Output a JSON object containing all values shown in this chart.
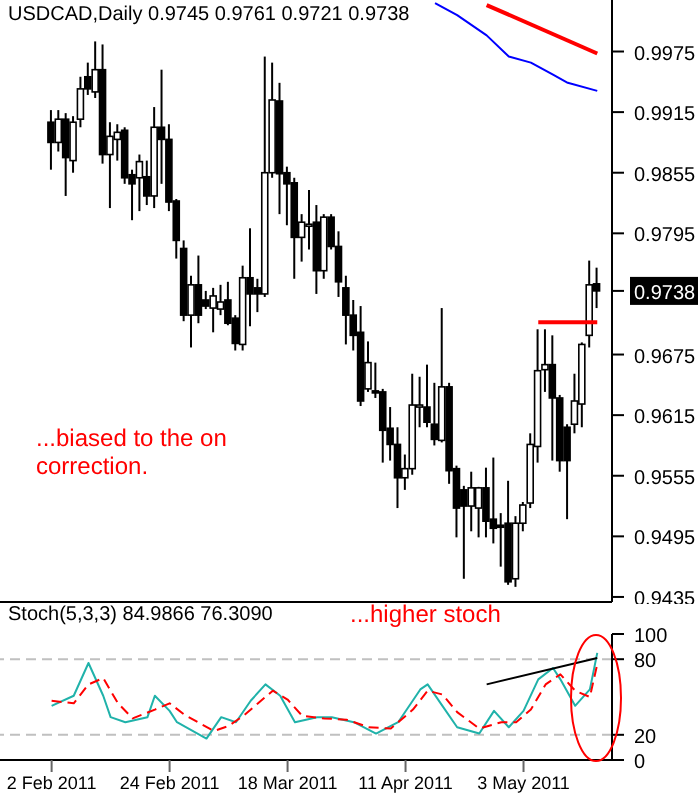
{
  "chart_data": [
    {
      "type": "candlestick",
      "title": "USDCAD,Daily 0.9745 0.9761 0.9721 0.9738",
      "categories": [
        null,
        null,
        null,
        null,
        null,
        null,
        null,
        null,
        null,
        null,
        null,
        null,
        null,
        null,
        null,
        null,
        null,
        null,
        null,
        null,
        null,
        null,
        null,
        null,
        null,
        null,
        null,
        null,
        null,
        null,
        null,
        null,
        null,
        null,
        null,
        null,
        null,
        null,
        null,
        null,
        null,
        null,
        null,
        null,
        null,
        null,
        null,
        null,
        null,
        null,
        null,
        null,
        null,
        null,
        null,
        null,
        null,
        null,
        null,
        null,
        null,
        null,
        null,
        null,
        null,
        null,
        null,
        null,
        null,
        null,
        null,
        null,
        null,
        null,
        null
      ],
      "ohlc": [
        [
          0.9905,
          0.9917,
          0.9858,
          0.9885
        ],
        [
          0.9885,
          0.9917,
          0.9876,
          0.9908
        ],
        [
          0.9908,
          0.9914,
          0.9832,
          0.987
        ],
        [
          0.9867,
          0.9911,
          0.9855,
          0.9905
        ],
        [
          0.9908,
          0.995,
          0.99,
          0.9938
        ],
        [
          0.995,
          0.9964,
          0.9932,
          0.9938
        ],
        [
          0.9935,
          0.9985,
          0.9929,
          0.9957
        ],
        [
          0.9957,
          0.9982,
          0.9864,
          0.9873
        ],
        [
          0.9873,
          0.9905,
          0.982,
          0.9891
        ],
        [
          0.9888,
          0.9903,
          0.9867,
          0.9895
        ],
        [
          0.9897,
          0.99,
          0.9844,
          0.985
        ],
        [
          0.9853,
          0.9858,
          0.9808,
          0.9844
        ],
        [
          0.985,
          0.9873,
          0.9817,
          0.9866
        ],
        [
          0.9851,
          0.9867,
          0.9823,
          0.9832
        ],
        [
          0.9832,
          0.992,
          0.982,
          0.99
        ],
        [
          0.99,
          0.9957,
          0.9844,
          0.9888
        ],
        [
          0.9888,
          0.9903,
          0.9817,
          0.9826
        ],
        [
          0.9827,
          0.9829,
          0.977,
          0.9788
        ],
        [
          0.978,
          0.9788,
          0.9708,
          0.9714
        ],
        [
          0.9714,
          0.9753,
          0.9682,
          0.9744
        ],
        [
          0.9744,
          0.9773,
          0.9706,
          0.9714
        ],
        [
          0.9729,
          0.9738,
          0.972,
          0.9723
        ],
        [
          0.9721,
          0.9741,
          0.9697,
          0.9733
        ],
        [
          0.972,
          0.9744,
          0.9714,
          0.9727
        ],
        [
          0.9729,
          0.9747,
          0.9704,
          0.9706
        ],
        [
          0.9711,
          0.9714,
          0.9679,
          0.9686
        ],
        [
          0.9685,
          0.9763,
          0.9679,
          0.9751
        ],
        [
          0.9751,
          0.98,
          0.9703,
          0.9735
        ],
        [
          0.9741,
          0.975,
          0.9717,
          0.9735
        ],
        [
          0.9735,
          0.997,
          0.9732,
          0.9855
        ],
        [
          0.9855,
          0.9964,
          0.985,
          0.9927
        ],
        [
          0.9926,
          0.9944,
          0.9814,
          0.9854
        ],
        [
          0.9855,
          0.9861,
          0.9803,
          0.9844
        ],
        [
          0.9845,
          0.985,
          0.975,
          0.9791
        ],
        [
          0.9791,
          0.9814,
          0.9767,
          0.9806
        ],
        [
          0.9803,
          0.9838,
          0.9779,
          0.9804
        ],
        [
          0.9806,
          0.9823,
          0.9735,
          0.9758
        ],
        [
          0.9758,
          0.9814,
          0.975,
          0.9811
        ],
        [
          0.9811,
          0.9814,
          0.9779,
          0.9782
        ],
        [
          0.9782,
          0.9797,
          0.9732,
          0.9747
        ],
        [
          0.9741,
          0.9753,
          0.9685,
          0.9714
        ],
        [
          0.9714,
          0.9729,
          0.9679,
          0.9694
        ],
        [
          0.9697,
          0.9723,
          0.9624,
          0.9629
        ],
        [
          0.9641,
          0.9688,
          0.9638,
          0.9667
        ],
        [
          0.9639,
          0.9667,
          0.9632,
          0.9637
        ],
        [
          0.9638,
          0.9641,
          0.9568,
          0.96
        ],
        [
          0.9602,
          0.9623,
          0.957,
          0.9586
        ],
        [
          0.9586,
          0.9603,
          0.9523,
          0.9553
        ],
        [
          0.9553,
          0.9576,
          0.9541,
          0.9562
        ],
        [
          0.9562,
          0.9656,
          0.9556,
          0.9625
        ],
        [
          0.9623,
          0.9653,
          0.9603,
          0.9625
        ],
        [
          0.9623,
          0.9665,
          0.9603,
          0.9608
        ],
        [
          0.9606,
          0.9647,
          0.9585,
          0.9591
        ],
        [
          0.959,
          0.9721,
          0.9588,
          0.9643
        ],
        [
          0.9643,
          0.9647,
          0.9547,
          0.956
        ],
        [
          0.9562,
          0.9565,
          0.9494,
          0.9523
        ],
        [
          0.9541,
          0.9545,
          0.9453,
          0.9525
        ],
        [
          0.9525,
          0.9559,
          0.95,
          0.9543
        ],
        [
          0.9523,
          0.9544,
          0.9494,
          0.9543
        ],
        [
          0.9543,
          0.9563,
          0.9494,
          0.951
        ],
        [
          0.9512,
          0.9573,
          0.9488,
          0.9503
        ],
        [
          0.9506,
          0.9518,
          0.9465,
          0.9504
        ],
        [
          0.9508,
          0.955,
          0.9447,
          0.945
        ],
        [
          0.9453,
          0.9515,
          0.9445,
          0.9508
        ],
        [
          0.9508,
          0.9529,
          0.95,
          0.9526
        ],
        [
          0.9528,
          0.9597,
          0.9523,
          0.9586
        ],
        [
          0.9584,
          0.97,
          0.9568,
          0.9659
        ],
        [
          0.966,
          0.97,
          0.9638,
          0.9665
        ],
        [
          0.9665,
          0.9694,
          0.957,
          0.9632
        ],
        [
          0.9632,
          0.9635,
          0.9559,
          0.957
        ],
        [
          0.9603,
          0.9606,
          0.9512,
          0.957
        ],
        [
          0.9606,
          0.9656,
          0.9597,
          0.9629
        ],
        [
          0.9626,
          0.9687,
          0.9603,
          0.9685
        ],
        [
          0.9694,
          0.9768,
          0.9682,
          0.9744
        ],
        [
          0.9745,
          0.9761,
          0.9721,
          0.9738
        ]
      ],
      "series": [
        {
          "type": "line",
          "color": "#0000ff",
          "values": [
            null,
            null,
            null,
            null,
            null,
            null,
            null,
            null,
            null,
            null,
            null,
            null,
            null,
            null,
            null,
            null,
            null,
            null,
            null,
            null,
            null,
            null,
            null,
            null,
            null,
            null,
            null,
            null,
            null,
            null,
            null,
            null,
            null,
            null,
            null,
            null,
            null,
            null,
            null,
            null,
            null,
            null,
            null,
            null,
            null,
            null,
            null,
            null,
            null,
            null,
            null,
            null,
            1.0023,
            null,
            null,
            1.0011,
            null,
            null,
            null,
            0.9991,
            null,
            null,
            0.997,
            null,
            null,
            0.9964,
            null,
            null,
            0.9952,
            null,
            0.9944,
            null,
            null,
            null,
            0.9936
          ]
        },
        {
          "type": "line",
          "color": "#ff0000",
          "values": [
            null,
            null,
            null,
            null,
            null,
            null,
            null,
            null,
            null,
            null,
            null,
            null,
            null,
            null,
            null,
            null,
            null,
            null,
            null,
            null,
            null,
            null,
            null,
            null,
            null,
            null,
            null,
            null,
            null,
            null,
            null,
            null,
            null,
            null,
            null,
            null,
            null,
            null,
            null,
            null,
            null,
            null,
            null,
            null,
            null,
            null,
            null,
            null,
            null,
            null,
            null,
            null,
            null,
            null,
            null,
            null,
            null,
            null,
            null,
            1.0021,
            null,
            null,
            null,
            null,
            null,
            null,
            null,
            null,
            null,
            null,
            null,
            null,
            null,
            null,
            0.9973
          ]
        },
        {
          "type": "line",
          "color": "#ff0000",
          "values": [
            null,
            null,
            null,
            null,
            null,
            null,
            null,
            null,
            null,
            null,
            null,
            null,
            null,
            null,
            null,
            null,
            null,
            null,
            null,
            null,
            null,
            null,
            null,
            null,
            null,
            null,
            null,
            null,
            null,
            null,
            null,
            null,
            null,
            null,
            null,
            null,
            null,
            null,
            null,
            null,
            null,
            null,
            null,
            null,
            null,
            null,
            null,
            null,
            null,
            null,
            null,
            null,
            null,
            null,
            null,
            null,
            null,
            null,
            null,
            null,
            null,
            null,
            null,
            null,
            null,
            null,
            0.9707,
            null,
            null,
            null,
            null,
            null,
            null,
            null,
            0.9707
          ]
        }
      ],
      "ylim": [
        0.943,
        1.0026
      ],
      "yticks": [
        0.9435,
        0.9495,
        0.9555,
        0.9615,
        0.9675,
        {
          "value": 0.9738,
          "label": "0.9738"
        },
        0.9795,
        0.9855,
        0.9915,
        0.9975
      ],
      "annotations": [
        "...biased to the on correction."
      ]
    },
    {
      "type": "line",
      "title": "Stoch(5,3,3) 84.9866 76.3090",
      "categories": [
        "2 Feb 2011",
        null,
        null,
        null,
        null,
        null,
        null,
        null,
        null,
        null,
        null,
        null,
        null,
        null,
        null,
        null,
        "24 Feb 2011",
        null,
        null,
        null,
        null,
        null,
        null,
        null,
        null,
        null,
        null,
        null,
        null,
        null,
        null,
        null,
        "18 Mar 2011",
        null,
        null,
        null,
        null,
        null,
        null,
        null,
        null,
        null,
        null,
        null,
        null,
        null,
        null,
        null,
        "11 Apr 2011",
        null,
        null,
        null,
        null,
        null,
        null,
        null,
        null,
        null,
        null,
        null,
        null,
        null,
        null,
        null,
        "3 May 2011",
        null,
        null,
        null,
        null,
        null,
        null,
        null,
        null,
        null,
        null
      ],
      "series": [
        {
          "color": "#20b2aa",
          "values": [
            43,
            null,
            null,
            51,
            null,
            77,
            null,
            51,
            34,
            null,
            30,
            null,
            null,
            34,
            51,
            null,
            39,
            30,
            null,
            null,
            null,
            17,
            null,
            34,
            null,
            30,
            null,
            47,
            null,
            60,
            null,
            51,
            null,
            30,
            null,
            null,
            34,
            null,
            34,
            null,
            null,
            30,
            null,
            null,
            21,
            null,
            null,
            30,
            null,
            null,
            56,
            60,
            null,
            43,
            null,
            26,
            null,
            null,
            21,
            null,
            39,
            null,
            26,
            null,
            39,
            null,
            64,
            null,
            73,
            64,
            null,
            43,
            null,
            56,
            85
          ]
        },
        {
          "color": "#ff0000",
          "line_style": "dashed",
          "values": [
            47,
            null,
            null,
            45,
            null,
            60,
            null,
            65,
            null,
            45,
            null,
            33,
            null,
            null,
            40,
            null,
            45,
            null,
            36,
            null,
            null,
            null,
            23,
            null,
            27,
            null,
            35,
            null,
            45,
            null,
            55,
            null,
            48,
            null,
            35,
            null,
            null,
            33,
            null,
            null,
            32,
            null,
            null,
            26,
            null,
            null,
            25,
            null,
            null,
            40,
            null,
            55,
            null,
            52,
            null,
            38,
            null,
            null,
            25,
            null,
            null,
            30,
            null,
            30,
            null,
            40,
            null,
            60,
            null,
            68,
            null,
            55,
            null,
            50,
            76
          ]
        },
        {
          "color": "#000000",
          "values": [
            null,
            null,
            null,
            null,
            null,
            null,
            null,
            null,
            null,
            null,
            null,
            null,
            null,
            null,
            null,
            null,
            null,
            null,
            null,
            null,
            null,
            null,
            null,
            null,
            null,
            null,
            null,
            null,
            null,
            null,
            null,
            null,
            null,
            null,
            null,
            null,
            null,
            null,
            null,
            null,
            null,
            null,
            null,
            null,
            null,
            null,
            null,
            null,
            null,
            null,
            null,
            null,
            null,
            null,
            null,
            null,
            null,
            null,
            null,
            60,
            null,
            null,
            null,
            null,
            null,
            null,
            null,
            null,
            null,
            null,
            null,
            null,
            null,
            null,
            81
          ]
        }
      ],
      "ylim": [
        0,
        100
      ],
      "yticks": [
        0,
        20,
        80,
        100
      ],
      "marker": "none",
      "line_style": "solid",
      "ref_lines": [
        {
          "axis": "y",
          "value": 20,
          "color": "#c0c0c0",
          "line_style": "dashed"
        },
        {
          "axis": "y",
          "value": 80,
          "color": "#c0c0c0",
          "line_style": "dashed"
        }
      ],
      "annotations": [
        "...higher stoch"
      ]
    }
  ]
}
